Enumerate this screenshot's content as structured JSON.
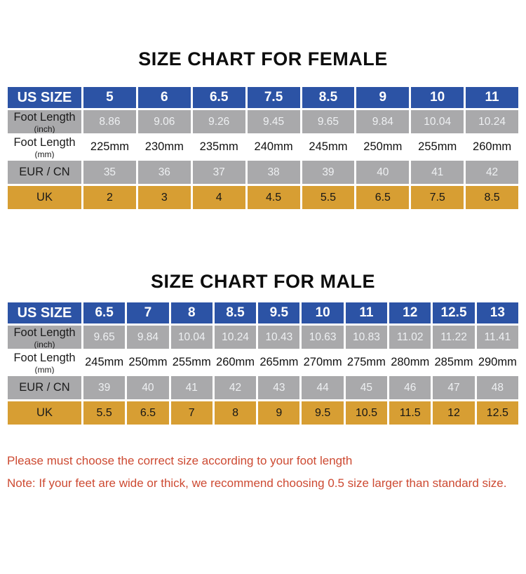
{
  "colors": {
    "header_blue": "#2c53a5",
    "row_gray": "#a9a9ab",
    "row_orange": "#d79e33",
    "note_red": "#cd4a32"
  },
  "tables": [
    {
      "id": "female",
      "title": "SIZE CHART FOR FEMALE",
      "header_label": "US SIZE",
      "sizes": [
        "5",
        "6",
        "6.5",
        "7.5",
        "8.5",
        "9",
        "10",
        "11"
      ],
      "rows": [
        {
          "label": "Foot Length",
          "sublabel": "(inch)",
          "style": "gray",
          "values": [
            "8.86",
            "9.06",
            "9.26",
            "9.45",
            "9.65",
            "9.84",
            "10.04",
            "10.24"
          ]
        },
        {
          "label": "Foot Length",
          "sublabel": "(mm)",
          "style": "white",
          "values": [
            "225mm",
            "230mm",
            "235mm",
            "240mm",
            "245mm",
            "250mm",
            "255mm",
            "260mm"
          ]
        },
        {
          "label": "EUR / CN",
          "sublabel": "",
          "style": "gray",
          "values": [
            "35",
            "36",
            "37",
            "38",
            "39",
            "40",
            "41",
            "42"
          ]
        },
        {
          "label": "UK",
          "sublabel": "",
          "style": "orange",
          "values": [
            "2",
            "3",
            "4",
            "4.5",
            "5.5",
            "6.5",
            "7.5",
            "8.5"
          ]
        }
      ]
    },
    {
      "id": "male",
      "title": "SIZE CHART FOR MALE",
      "header_label": "US SIZE",
      "sizes": [
        "6.5",
        "7",
        "8",
        "8.5",
        "9.5",
        "10",
        "11",
        "12",
        "12.5",
        "13"
      ],
      "rows": [
        {
          "label": "Foot Length",
          "sublabel": "(inch)",
          "style": "gray",
          "values": [
            "9.65",
            "9.84",
            "10.04",
            "10.24",
            "10.43",
            "10.63",
            "10.83",
            "11.02",
            "11.22",
            "11.41"
          ]
        },
        {
          "label": "Foot Length",
          "sublabel": "(mm)",
          "style": "white",
          "values": [
            "245mm",
            "250mm",
            "255mm",
            "260mm",
            "265mm",
            "270mm",
            "275mm",
            "280mm",
            "285mm",
            "290mm"
          ]
        },
        {
          "label": "EUR / CN",
          "sublabel": "",
          "style": "gray",
          "values": [
            "39",
            "40",
            "41",
            "42",
            "43",
            "44",
            "45",
            "46",
            "47",
            "48"
          ]
        },
        {
          "label": "UK",
          "sublabel": "",
          "style": "orange",
          "values": [
            "5.5",
            "6.5",
            "7",
            "8",
            "9",
            "9.5",
            "10.5",
            "11.5",
            "12",
            "12.5"
          ]
        }
      ]
    }
  ],
  "notes": {
    "line1": "Please must choose the correct size  according to your foot length",
    "line2": "Note: If your feet are wide or thick, we recommend choosing 0.5 size larger than standard size."
  }
}
